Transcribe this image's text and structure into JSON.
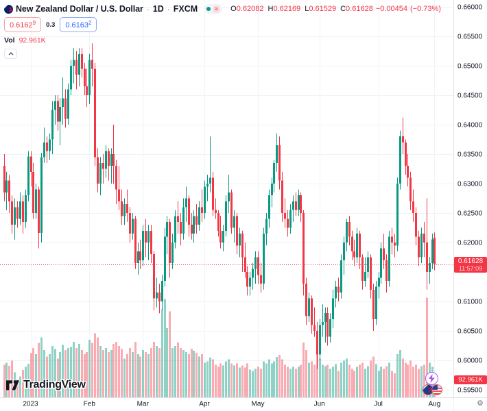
{
  "header": {
    "symbol_title": "New Zealand Dollar / U.S. Dollar",
    "separator": "·",
    "timeframe": "1D",
    "exchange": "FXCM",
    "market_status": {
      "open_dot": "market-open",
      "delayed_glyph": "≈"
    },
    "ohlc": {
      "o_label": "O",
      "o": "0.62082",
      "h_label": "H",
      "h": "0.62169",
      "l_label": "L",
      "l": "0.61529",
      "c_label": "C",
      "c": "0.61628"
    },
    "change": "−0.00454",
    "change_pct": "(−0.73%)"
  },
  "quote": {
    "sell": "0.6162",
    "sell_sup": "9",
    "spread": "0.3",
    "buy": "0.6163",
    "buy_sup": "2"
  },
  "volume_row": {
    "label": "Vol",
    "value": "92.961K"
  },
  "price_scale": {
    "price_badge": {
      "price": "0.61628",
      "countdown": "11:57:09"
    },
    "volume_badge": "92.961K"
  },
  "watermark": {
    "brand": "TradingView"
  },
  "colors": {
    "up": "#089981",
    "down": "#f23645",
    "vol_up": "rgba(8,153,129,0.45)",
    "vol_down": "rgba(242,54,69,0.42)",
    "grid": "#eff2f7",
    "axis_text": "#131722",
    "axis_line": "#e0e3eb",
    "last_price_line": "#f23645",
    "accent_blue": "#2962ff"
  },
  "chart_data": {
    "type": "candlestick",
    "title": "New Zealand Dollar / U.S. Dollar",
    "timeframe": "1D",
    "exchange": "FXCM",
    "has_volume_pane": true,
    "y_axis": {
      "min": 0.595,
      "max": 0.66,
      "tick_step": 0.005
    },
    "y_ticks": [
      "0.66000",
      "0.65500",
      "0.65000",
      "0.64500",
      "0.64000",
      "0.63500",
      "0.63000",
      "0.62500",
      "0.62000",
      "0.61000",
      "0.60500",
      "0.60000",
      "0.59500"
    ],
    "hidden_y_tick": "0.61500",
    "x_ticks": [
      {
        "label": "2023",
        "bar": 10
      },
      {
        "label": "Feb",
        "bar": 32
      },
      {
        "label": "Mar",
        "bar": 52
      },
      {
        "label": "Apr",
        "bar": 75
      },
      {
        "label": "May",
        "bar": 95
      },
      {
        "label": "Jun",
        "bar": 118
      },
      {
        "label": "Jul",
        "bar": 140
      },
      {
        "label": "Aug",
        "bar": 161
      }
    ],
    "last_price": 0.61628,
    "current_volume_k": 92.961,
    "vol_axis_max_k": 480,
    "bars_note": "each bar = [open, high, low, close, volume_k], daily bars Dec 2022 - Aug 1 2023",
    "bars": [
      [
        0.633,
        0.635,
        0.627,
        0.6285,
        155
      ],
      [
        0.6285,
        0.632,
        0.6255,
        0.6305,
        165
      ],
      [
        0.6305,
        0.6315,
        0.625,
        0.627,
        150
      ],
      [
        0.627,
        0.628,
        0.6215,
        0.623,
        175
      ],
      [
        0.623,
        0.6275,
        0.6205,
        0.626,
        120
      ],
      [
        0.626,
        0.627,
        0.6225,
        0.624,
        85
      ],
      [
        0.624,
        0.6285,
        0.623,
        0.627,
        100
      ],
      [
        0.627,
        0.628,
        0.6215,
        0.6235,
        130
      ],
      [
        0.6235,
        0.629,
        0.6225,
        0.628,
        145
      ],
      [
        0.628,
        0.6355,
        0.627,
        0.6346,
        160
      ],
      [
        0.6346,
        0.6355,
        0.6295,
        0.632,
        210
      ],
      [
        0.632,
        0.6335,
        0.624,
        0.625,
        235
      ],
      [
        0.625,
        0.63,
        0.624,
        0.629,
        205
      ],
      [
        0.629,
        0.6295,
        0.619,
        0.6216,
        260
      ],
      [
        0.6216,
        0.6352,
        0.62,
        0.6345,
        285
      ],
      [
        0.6345,
        0.6395,
        0.6335,
        0.637,
        225
      ],
      [
        0.637,
        0.638,
        0.6335,
        0.6355,
        195
      ],
      [
        0.6355,
        0.6385,
        0.634,
        0.6375,
        205
      ],
      [
        0.6375,
        0.644,
        0.635,
        0.6425,
        245
      ],
      [
        0.6425,
        0.645,
        0.64,
        0.644,
        230
      ],
      [
        0.644,
        0.645,
        0.639,
        0.6405,
        185
      ],
      [
        0.6405,
        0.6445,
        0.6365,
        0.643,
        215
      ],
      [
        0.643,
        0.648,
        0.64,
        0.6445,
        250
      ],
      [
        0.6445,
        0.646,
        0.6395,
        0.641,
        225
      ],
      [
        0.641,
        0.647,
        0.64,
        0.646,
        235
      ],
      [
        0.646,
        0.651,
        0.645,
        0.65,
        240
      ],
      [
        0.65,
        0.653,
        0.647,
        0.651,
        265
      ],
      [
        0.651,
        0.6525,
        0.646,
        0.6485,
        235
      ],
      [
        0.6485,
        0.653,
        0.6465,
        0.652,
        255
      ],
      [
        0.652,
        0.653,
        0.648,
        0.6495,
        225
      ],
      [
        0.6495,
        0.6505,
        0.645,
        0.6465,
        205
      ],
      [
        0.6465,
        0.6495,
        0.643,
        0.645,
        215
      ],
      [
        0.645,
        0.652,
        0.6435,
        0.651,
        275
      ],
      [
        0.651,
        0.6538,
        0.6465,
        0.6495,
        260
      ],
      [
        0.6495,
        0.6505,
        0.633,
        0.6345,
        305
      ],
      [
        0.6345,
        0.636,
        0.6285,
        0.63,
        285
      ],
      [
        0.63,
        0.6345,
        0.628,
        0.6335,
        245
      ],
      [
        0.6335,
        0.635,
        0.63,
        0.6325,
        225
      ],
      [
        0.6325,
        0.6365,
        0.631,
        0.6355,
        235
      ],
      [
        0.6355,
        0.636,
        0.6305,
        0.633,
        215
      ],
      [
        0.633,
        0.636,
        0.63,
        0.635,
        225
      ],
      [
        0.635,
        0.64,
        0.63,
        0.633,
        255
      ],
      [
        0.633,
        0.634,
        0.6265,
        0.629,
        265
      ],
      [
        0.629,
        0.633,
        0.6255,
        0.627,
        245
      ],
      [
        0.627,
        0.629,
        0.623,
        0.6245,
        230
      ],
      [
        0.6245,
        0.6275,
        0.623,
        0.6265,
        185
      ],
      [
        0.6265,
        0.629,
        0.6235,
        0.625,
        205
      ],
      [
        0.625,
        0.626,
        0.62,
        0.6215,
        235
      ],
      [
        0.6215,
        0.625,
        0.6205,
        0.624,
        215
      ],
      [
        0.624,
        0.6245,
        0.6155,
        0.6165,
        265
      ],
      [
        0.6165,
        0.62,
        0.6145,
        0.6185,
        205
      ],
      [
        0.6185,
        0.6205,
        0.6155,
        0.617,
        195
      ],
      [
        0.617,
        0.623,
        0.616,
        0.622,
        225
      ],
      [
        0.622,
        0.624,
        0.6175,
        0.62,
        215
      ],
      [
        0.62,
        0.623,
        0.617,
        0.622,
        205
      ],
      [
        0.622,
        0.623,
        0.6165,
        0.618,
        235
      ],
      [
        0.618,
        0.6185,
        0.6085,
        0.6105,
        265
      ],
      [
        0.6105,
        0.614,
        0.609,
        0.6115,
        245
      ],
      [
        0.6115,
        0.613,
        0.608,
        0.61,
        235
      ],
      [
        0.61,
        0.6145,
        0.6085,
        0.6135,
        420
      ],
      [
        0.6135,
        0.6225,
        0.6125,
        0.621,
        468
      ],
      [
        0.621,
        0.6245,
        0.618,
        0.6235,
        330
      ],
      [
        0.6235,
        0.624,
        0.614,
        0.6165,
        410
      ],
      [
        0.6165,
        0.6215,
        0.6155,
        0.62,
        235
      ],
      [
        0.62,
        0.6255,
        0.619,
        0.6245,
        245
      ],
      [
        0.6245,
        0.627,
        0.6215,
        0.6235,
        262
      ],
      [
        0.6235,
        0.625,
        0.6195,
        0.6215,
        235
      ],
      [
        0.6215,
        0.6275,
        0.6205,
        0.626,
        225
      ],
      [
        0.626,
        0.6295,
        0.6235,
        0.6275,
        215
      ],
      [
        0.6275,
        0.628,
        0.621,
        0.623,
        205
      ],
      [
        0.623,
        0.625,
        0.6205,
        0.6215,
        232
      ],
      [
        0.6215,
        0.6255,
        0.62,
        0.6245,
        222
      ],
      [
        0.6245,
        0.6265,
        0.6215,
        0.623,
        212
      ],
      [
        0.623,
        0.627,
        0.622,
        0.626,
        195
      ],
      [
        0.626,
        0.629,
        0.6235,
        0.625,
        205
      ],
      [
        0.625,
        0.6305,
        0.624,
        0.6295,
        165
      ],
      [
        0.6295,
        0.6315,
        0.627,
        0.63,
        172
      ],
      [
        0.63,
        0.638,
        0.6285,
        0.631,
        190
      ],
      [
        0.631,
        0.632,
        0.6245,
        0.6255,
        182
      ],
      [
        0.6255,
        0.6275,
        0.624,
        0.625,
        155
      ],
      [
        0.625,
        0.6255,
        0.621,
        0.622,
        145
      ],
      [
        0.622,
        0.6245,
        0.619,
        0.62,
        162
      ],
      [
        0.62,
        0.623,
        0.6185,
        0.622,
        152
      ],
      [
        0.622,
        0.628,
        0.621,
        0.627,
        172
      ],
      [
        0.627,
        0.6315,
        0.625,
        0.6285,
        182
      ],
      [
        0.6285,
        0.629,
        0.6215,
        0.6225,
        162
      ],
      [
        0.6225,
        0.6255,
        0.62,
        0.6245,
        152
      ],
      [
        0.6245,
        0.625,
        0.618,
        0.6195,
        162
      ],
      [
        0.6195,
        0.6225,
        0.6175,
        0.6215,
        142
      ],
      [
        0.6215,
        0.622,
        0.615,
        0.6175,
        152
      ],
      [
        0.6175,
        0.62,
        0.614,
        0.615,
        142
      ],
      [
        0.615,
        0.616,
        0.611,
        0.6125,
        162
      ],
      [
        0.6125,
        0.615,
        0.611,
        0.614,
        132
      ],
      [
        0.614,
        0.6165,
        0.612,
        0.6155,
        125
      ],
      [
        0.6155,
        0.6185,
        0.613,
        0.6175,
        135
      ],
      [
        0.6175,
        0.6185,
        0.613,
        0.6145,
        145
      ],
      [
        0.6145,
        0.6165,
        0.6115,
        0.613,
        135
      ],
      [
        0.613,
        0.6225,
        0.612,
        0.6215,
        172
      ],
      [
        0.6215,
        0.625,
        0.6195,
        0.624,
        162
      ],
      [
        0.624,
        0.629,
        0.6225,
        0.628,
        182
      ],
      [
        0.628,
        0.631,
        0.626,
        0.63,
        162
      ],
      [
        0.63,
        0.634,
        0.6285,
        0.6335,
        172
      ],
      [
        0.6335,
        0.6385,
        0.632,
        0.6365,
        192
      ],
      [
        0.6365,
        0.638,
        0.629,
        0.6305,
        202
      ],
      [
        0.6305,
        0.632,
        0.6235,
        0.625,
        182
      ],
      [
        0.625,
        0.6275,
        0.6225,
        0.624,
        155
      ],
      [
        0.624,
        0.6255,
        0.621,
        0.6225,
        145
      ],
      [
        0.6225,
        0.6265,
        0.6215,
        0.6255,
        135
      ],
      [
        0.6255,
        0.628,
        0.6235,
        0.627,
        145
      ],
      [
        0.627,
        0.6285,
        0.6245,
        0.6255,
        135
      ],
      [
        0.6255,
        0.629,
        0.6245,
        0.628,
        145
      ],
      [
        0.628,
        0.6285,
        0.6235,
        0.625,
        155
      ],
      [
        0.625,
        0.6255,
        0.611,
        0.613,
        262
      ],
      [
        0.613,
        0.614,
        0.606,
        0.6075,
        225
      ],
      [
        0.6075,
        0.6115,
        0.6065,
        0.6105,
        165
      ],
      [
        0.6105,
        0.611,
        0.6045,
        0.606,
        172
      ],
      [
        0.606,
        0.609,
        0.604,
        0.605,
        155
      ],
      [
        0.605,
        0.6065,
        0.5985,
        0.601,
        205
      ],
      [
        0.601,
        0.607,
        0.6,
        0.606,
        185
      ],
      [
        0.606,
        0.6095,
        0.604,
        0.6065,
        155
      ],
      [
        0.6065,
        0.609,
        0.603,
        0.608,
        148
      ],
      [
        0.608,
        0.609,
        0.6025,
        0.604,
        155
      ],
      [
        0.604,
        0.608,
        0.603,
        0.607,
        135
      ],
      [
        0.607,
        0.612,
        0.6055,
        0.6105,
        145
      ],
      [
        0.6105,
        0.6135,
        0.609,
        0.6125,
        158
      ],
      [
        0.6125,
        0.614,
        0.61,
        0.6115,
        125
      ],
      [
        0.6115,
        0.618,
        0.6105,
        0.617,
        165
      ],
      [
        0.617,
        0.621,
        0.6145,
        0.62,
        175
      ],
      [
        0.62,
        0.624,
        0.6185,
        0.6235,
        185
      ],
      [
        0.6235,
        0.6245,
        0.6195,
        0.621,
        155
      ],
      [
        0.621,
        0.622,
        0.617,
        0.6185,
        135
      ],
      [
        0.6185,
        0.6205,
        0.616,
        0.6175,
        125
      ],
      [
        0.6175,
        0.6225,
        0.6165,
        0.6215,
        145
      ],
      [
        0.6215,
        0.622,
        0.6155,
        0.6175,
        155
      ],
      [
        0.6175,
        0.618,
        0.612,
        0.6135,
        165
      ],
      [
        0.6135,
        0.6175,
        0.6125,
        0.615,
        135
      ],
      [
        0.615,
        0.6185,
        0.614,
        0.6175,
        148
      ],
      [
        0.6175,
        0.618,
        0.6105,
        0.612,
        175
      ],
      [
        0.612,
        0.613,
        0.605,
        0.607,
        195
      ],
      [
        0.607,
        0.6135,
        0.606,
        0.6125,
        158
      ],
      [
        0.6125,
        0.615,
        0.6105,
        0.614,
        125
      ],
      [
        0.614,
        0.62,
        0.613,
        0.619,
        145
      ],
      [
        0.619,
        0.6215,
        0.6155,
        0.617,
        135
      ],
      [
        0.617,
        0.618,
        0.6115,
        0.6135,
        148
      ],
      [
        0.6135,
        0.622,
        0.6125,
        0.621,
        165
      ],
      [
        0.621,
        0.6225,
        0.618,
        0.62,
        125
      ],
      [
        0.62,
        0.6215,
        0.6175,
        0.6195,
        115
      ],
      [
        0.6195,
        0.631,
        0.6185,
        0.63,
        205
      ],
      [
        0.63,
        0.639,
        0.629,
        0.638,
        225
      ],
      [
        0.638,
        0.6412,
        0.635,
        0.637,
        185
      ],
      [
        0.637,
        0.6375,
        0.6315,
        0.633,
        165
      ],
      [
        0.633,
        0.635,
        0.6295,
        0.631,
        155
      ],
      [
        0.631,
        0.632,
        0.6255,
        0.627,
        175
      ],
      [
        0.627,
        0.629,
        0.6235,
        0.625,
        145
      ],
      [
        0.625,
        0.626,
        0.6195,
        0.621,
        155
      ],
      [
        0.621,
        0.622,
        0.616,
        0.6175,
        135
      ],
      [
        0.6175,
        0.6225,
        0.6165,
        0.6215,
        148
      ],
      [
        0.6215,
        0.6235,
        0.6175,
        0.62,
        155
      ],
      [
        0.62,
        0.6275,
        0.612,
        0.615,
        475
      ],
      [
        0.615,
        0.6175,
        0.613,
        0.6165,
        165
      ],
      [
        0.6165,
        0.6215,
        0.6155,
        0.6205,
        145
      ],
      [
        0.62082,
        0.62169,
        0.61529,
        0.61628,
        92.961
      ]
    ]
  }
}
